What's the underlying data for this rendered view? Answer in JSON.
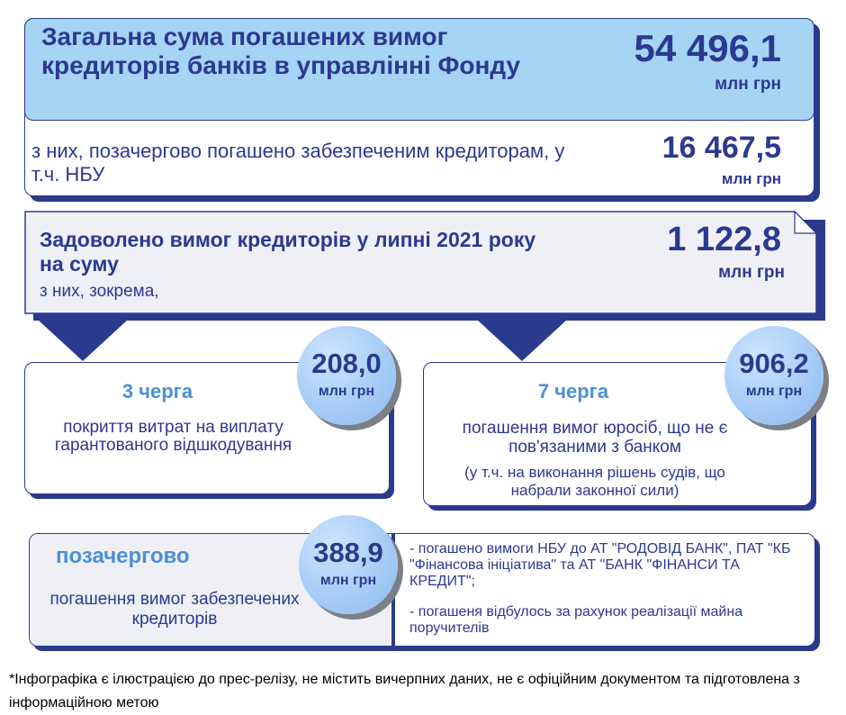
{
  "colors": {
    "navy": "#2b3a8c",
    "light_blue": "#a6d4f5",
    "pale_gray": "#eef0f5",
    "circle_blue": "#a6ccf6"
  },
  "total": {
    "title": "Загальна сума погашених вимог кредиторів банків в управлінні Фонду",
    "value": "54 496,1",
    "unit": "млн грн"
  },
  "priority_paid": {
    "text": "з них, позачергово погашено забезпеченим кредиторам, у т.ч. НБУ",
    "value": "16 467,5",
    "unit": "млн грн"
  },
  "july": {
    "title": "Задоволено вимог кредиторів у липні 2021 року на суму",
    "subtitle": "з них, зокрема,",
    "value": "1 122,8",
    "unit": "млн грн"
  },
  "queue3": {
    "heading": "3 черга",
    "description": "покриття витрат на виплату гарантованого відшкодування",
    "value": "208,0",
    "unit": "млн грн"
  },
  "queue7": {
    "heading": "7 черга",
    "description": "погашення вимог юросіб, що не є пов'язаними з банком",
    "note": "(у т.ч. на виконання рішень судів, що набрали законної сили)",
    "value": "906,2",
    "unit": "млн грн"
  },
  "out_of_turn": {
    "heading": "позачергово",
    "description": "погашення вимог забезпечених кредиторів",
    "value": "388,9",
    "unit": "млн грн",
    "details": [
      "- погашено вимоги НБУ до АТ \"РОДОВІД БАНК\", ПАТ \"КБ \"Фінансова ініціатива\" та АТ \"БАНК \"ФІНАНСИ ТА КРЕДИТ\";",
      "- погашеня відбулось за рахунок реалізації майна поручителів"
    ]
  },
  "footnote": "*Інфографіка є ілюстрацією до прес-релізу, не містить вичерпних даних, не є офіційним документом та підготовлена з інформаційною метою"
}
